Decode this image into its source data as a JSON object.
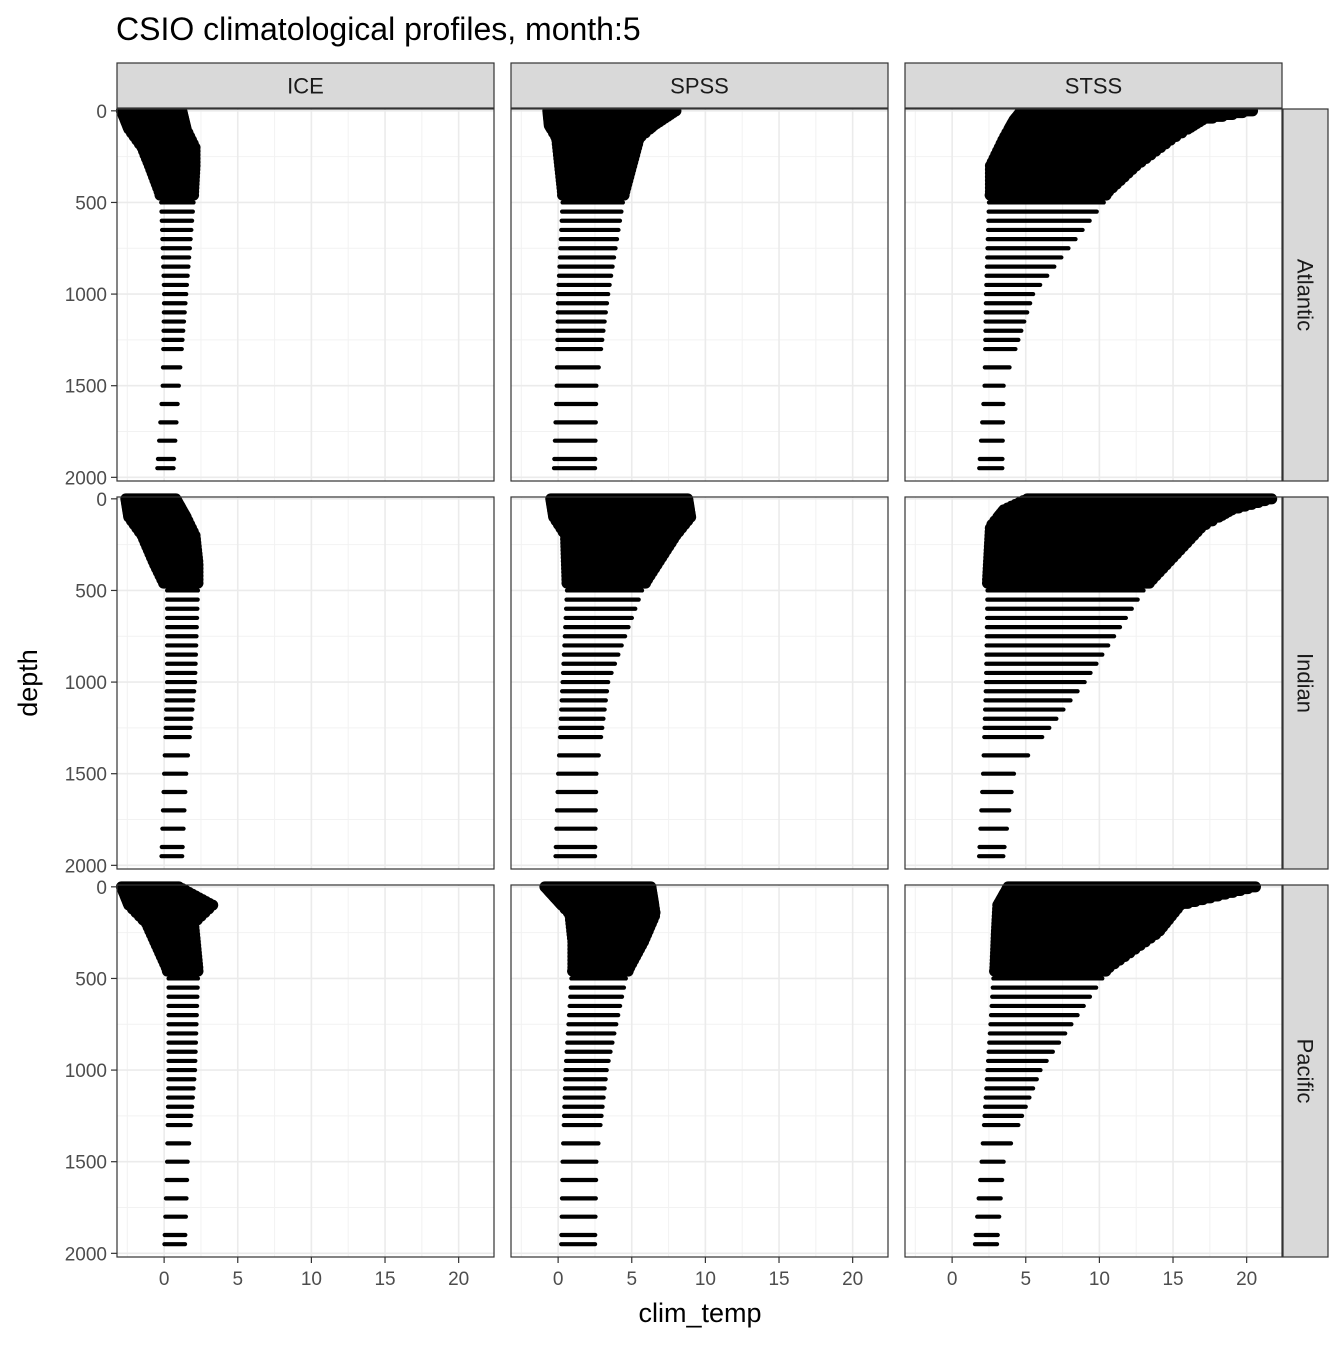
{
  "chart_data": {
    "type": "scatter",
    "title": "CSIO climatological profiles, month:5",
    "xlabel": "clim_temp",
    "ylabel": "depth",
    "facet_cols": [
      "ICE",
      "SPSS",
      "STSS"
    ],
    "facet_rows": [
      "Atlantic",
      "Indian",
      "Pacific"
    ],
    "xlim": [
      -3.2,
      22.4
    ],
    "ylim": [
      2020,
      -10
    ],
    "y_reversed": true,
    "x_ticks": [
      0,
      5,
      10,
      15,
      20
    ],
    "y_ticks": [
      0,
      500,
      1000,
      1500,
      2000
    ],
    "grid": true,
    "point_color": "#000000",
    "depth_levels": [
      0,
      10,
      20,
      30,
      40,
      50,
      60,
      70,
      80,
      90,
      100,
      120,
      140,
      160,
      180,
      200,
      220,
      240,
      260,
      280,
      300,
      320,
      340,
      360,
      380,
      400,
      420,
      440,
      460,
      500,
      550,
      600,
      650,
      700,
      750,
      800,
      850,
      900,
      950,
      1000,
      1050,
      1100,
      1150,
      1200,
      1250,
      1300,
      1400,
      1500,
      1600,
      1700,
      1800,
      1900,
      1950
    ],
    "panels": [
      {
        "row": "Atlantic",
        "col": "ICE",
        "profile": [
          {
            "depth": 0,
            "min": -2.9,
            "max": 1.2
          },
          {
            "depth": 100,
            "min": -2.4,
            "max": 1.5
          },
          {
            "depth": 200,
            "min": -1.5,
            "max": 2.1
          },
          {
            "depth": 300,
            "min": -1.0,
            "max": 2.1
          },
          {
            "depth": 450,
            "min": -0.3,
            "max": 2.0
          },
          {
            "depth": 500,
            "min": -0.2,
            "max": 2.0
          },
          {
            "depth": 1000,
            "min": 0.0,
            "max": 1.5
          },
          {
            "depth": 1500,
            "min": -0.1,
            "max": 1.0
          },
          {
            "depth": 2000,
            "min": -0.5,
            "max": 0.6
          }
        ]
      },
      {
        "row": "Atlantic",
        "col": "SPSS",
        "profile": [
          {
            "depth": 0,
            "min": -0.7,
            "max": 8.0
          },
          {
            "depth": 80,
            "min": -0.6,
            "max": 6.5
          },
          {
            "depth": 150,
            "min": -0.1,
            "max": 5.5
          },
          {
            "depth": 450,
            "min": 0.3,
            "max": 4.5
          },
          {
            "depth": 500,
            "min": 0.3,
            "max": 4.4
          },
          {
            "depth": 1000,
            "min": 0.0,
            "max": 3.4
          },
          {
            "depth": 1500,
            "min": -0.1,
            "max": 2.6
          },
          {
            "depth": 2000,
            "min": -0.3,
            "max": 2.5
          }
        ]
      },
      {
        "row": "Atlantic",
        "col": "STSS",
        "profile": [
          {
            "depth": 0,
            "min": 4.7,
            "max": 20.4
          },
          {
            "depth": 50,
            "min": 4.2,
            "max": 17.0
          },
          {
            "depth": 150,
            "min": 3.5,
            "max": 15.0
          },
          {
            "depth": 300,
            "min": 2.6,
            "max": 12.5
          },
          {
            "depth": 450,
            "min": 2.6,
            "max": 10.5
          },
          {
            "depth": 500,
            "min": 2.5,
            "max": 10.3
          },
          {
            "depth": 1000,
            "min": 2.3,
            "max": 5.5
          },
          {
            "depth": 1500,
            "min": 2.2,
            "max": 3.5
          },
          {
            "depth": 2000,
            "min": 1.8,
            "max": 3.4
          }
        ]
      },
      {
        "row": "Indian",
        "col": "ICE",
        "profile": [
          {
            "depth": 0,
            "min": -2.6,
            "max": 0.8
          },
          {
            "depth": 100,
            "min": -2.4,
            "max": 1.5
          },
          {
            "depth": 200,
            "min": -1.5,
            "max": 2.1
          },
          {
            "depth": 350,
            "min": -0.7,
            "max": 2.3
          },
          {
            "depth": 500,
            "min": 0.2,
            "max": 2.3
          },
          {
            "depth": 1000,
            "min": 0.2,
            "max": 2.1
          },
          {
            "depth": 1500,
            "min": 0.0,
            "max": 1.5
          },
          {
            "depth": 2000,
            "min": -0.2,
            "max": 1.2
          }
        ]
      },
      {
        "row": "Indian",
        "col": "SPSS",
        "profile": [
          {
            "depth": 0,
            "min": -0.5,
            "max": 8.8
          },
          {
            "depth": 100,
            "min": -0.3,
            "max": 9.0
          },
          {
            "depth": 200,
            "min": 0.5,
            "max": 8.0
          },
          {
            "depth": 450,
            "min": 0.6,
            "max": 6.0
          },
          {
            "depth": 500,
            "min": 0.6,
            "max": 5.7
          },
          {
            "depth": 1000,
            "min": 0.3,
            "max": 3.4
          },
          {
            "depth": 1500,
            "min": 0.0,
            "max": 2.6
          },
          {
            "depth": 2000,
            "min": -0.2,
            "max": 2.5
          }
        ]
      },
      {
        "row": "Indian",
        "col": "STSS",
        "profile": [
          {
            "depth": 0,
            "min": 5.1,
            "max": 21.7
          },
          {
            "depth": 60,
            "min": 3.5,
            "max": 19.0
          },
          {
            "depth": 150,
            "min": 2.6,
            "max": 17.0
          },
          {
            "depth": 450,
            "min": 2.4,
            "max": 13.5
          },
          {
            "depth": 500,
            "min": 2.4,
            "max": 13.0
          },
          {
            "depth": 1000,
            "min": 2.3,
            "max": 9.0
          },
          {
            "depth": 1500,
            "min": 2.1,
            "max": 4.2
          },
          {
            "depth": 2000,
            "min": 1.8,
            "max": 3.4
          }
        ]
      },
      {
        "row": "Pacific",
        "col": "ICE",
        "profile": [
          {
            "depth": 0,
            "min": -2.9,
            "max": 1.0
          },
          {
            "depth": 100,
            "min": -2.4,
            "max": 3.3
          },
          {
            "depth": 200,
            "min": -1.2,
            "max": 2.0
          },
          {
            "depth": 450,
            "min": 0.2,
            "max": 2.3
          },
          {
            "depth": 500,
            "min": 0.3,
            "max": 2.3
          },
          {
            "depth": 1000,
            "min": 0.3,
            "max": 2.1
          },
          {
            "depth": 1500,
            "min": 0.2,
            "max": 1.6
          },
          {
            "depth": 2000,
            "min": 0.0,
            "max": 1.4
          }
        ]
      },
      {
        "row": "Pacific",
        "col": "SPSS",
        "profile": [
          {
            "depth": 0,
            "min": -0.9,
            "max": 6.3
          },
          {
            "depth": 150,
            "min": 0.8,
            "max": 6.6
          },
          {
            "depth": 300,
            "min": 1.0,
            "max": 5.8
          },
          {
            "depth": 450,
            "min": 1.0,
            "max": 4.8
          },
          {
            "depth": 500,
            "min": 0.9,
            "max": 4.6
          },
          {
            "depth": 1000,
            "min": 0.5,
            "max": 3.3
          },
          {
            "depth": 1500,
            "min": 0.3,
            "max": 2.6
          },
          {
            "depth": 2000,
            "min": 0.2,
            "max": 2.5
          }
        ]
      },
      {
        "row": "Pacific",
        "col": "STSS",
        "profile": [
          {
            "depth": 0,
            "min": 3.8,
            "max": 20.6
          },
          {
            "depth": 100,
            "min": 3.1,
            "max": 15.5
          },
          {
            "depth": 250,
            "min": 3.0,
            "max": 14.0
          },
          {
            "depth": 450,
            "min": 2.9,
            "max": 10.5
          },
          {
            "depth": 500,
            "min": 2.8,
            "max": 10.2
          },
          {
            "depth": 1000,
            "min": 2.4,
            "max": 6.0
          },
          {
            "depth": 1500,
            "min": 2.0,
            "max": 3.5
          },
          {
            "depth": 2000,
            "min": 1.5,
            "max": 3.0
          }
        ]
      }
    ]
  }
}
